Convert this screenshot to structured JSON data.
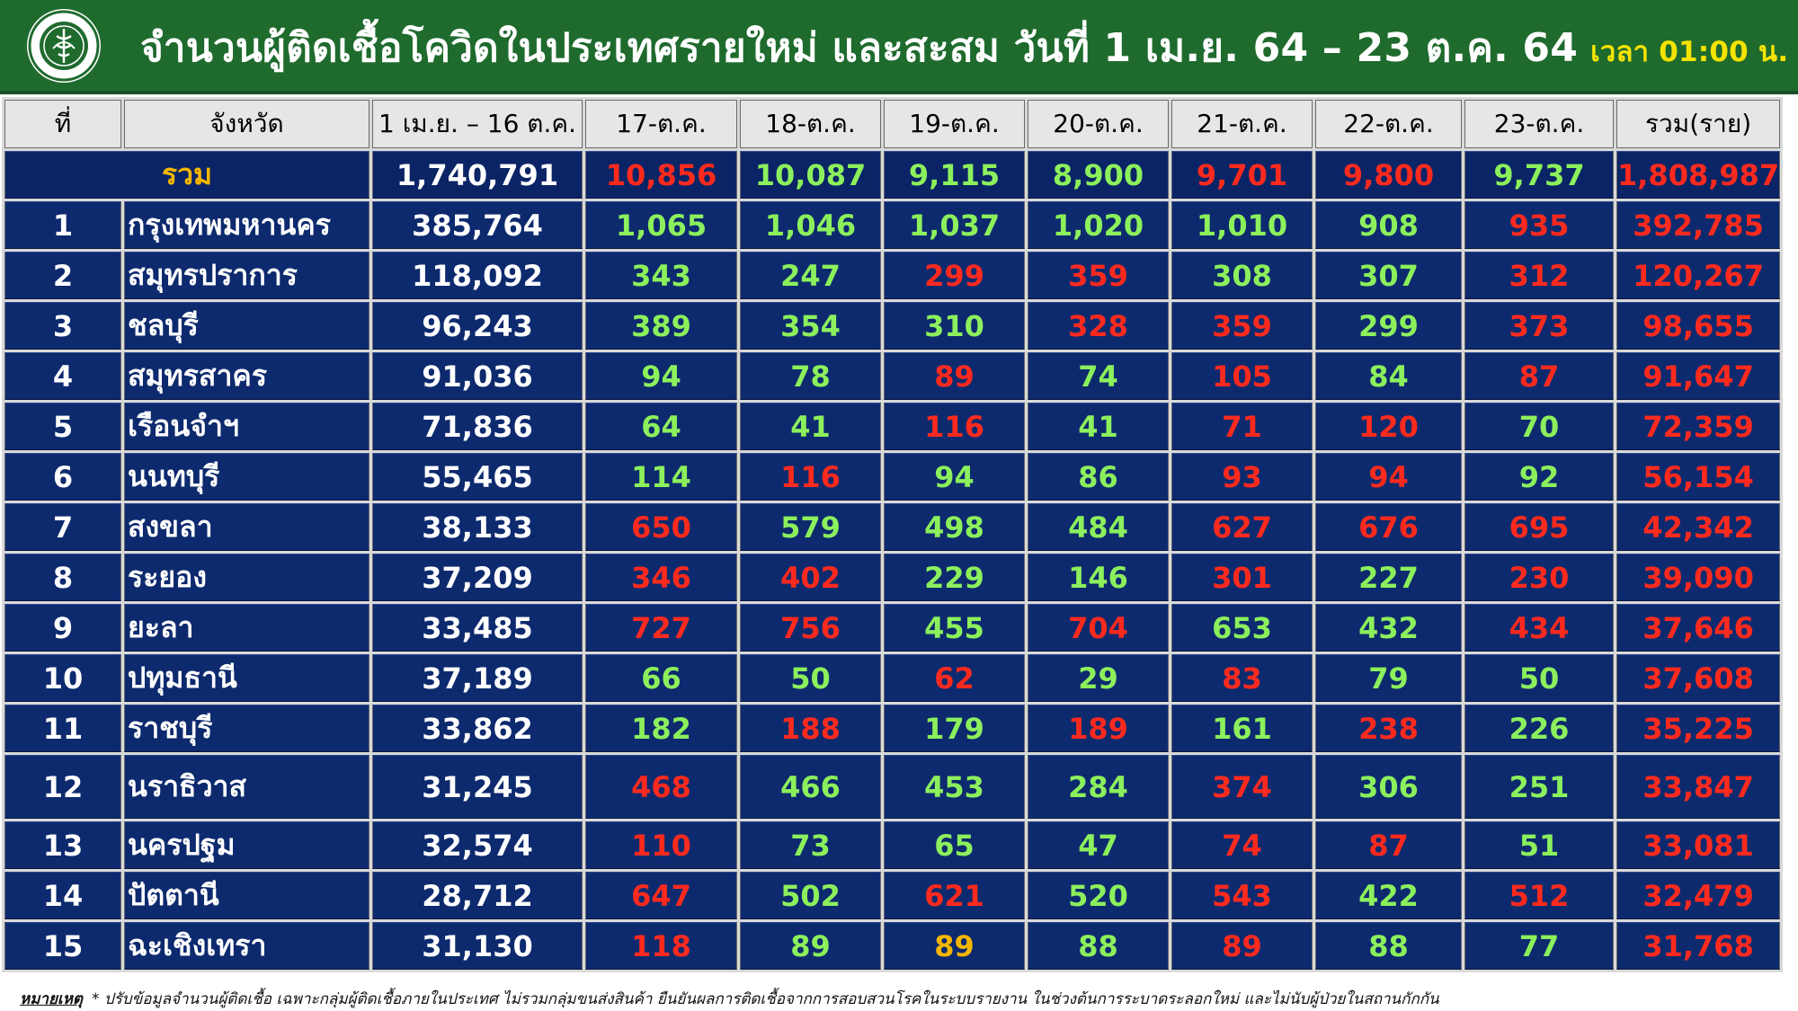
{
  "header": {
    "title": "จำนวนผู้ติดเชื้อโควิดในประเทศรายใหม่ และสะสม วันที่ 1 เม.ย. 64 – 23 ต.ค. 64",
    "time": "เวลา 01:00 น.",
    "logo_icon": "moph-emblem-icon",
    "bg_color": "#1f6b2e"
  },
  "table": {
    "headers": [
      "ที่",
      "จังหวัด",
      "1 เม.ย. – 16 ต.ค.",
      "17-ต.ค.",
      "18-ต.ค.",
      "19-ต.ค.",
      "20-ต.ค.",
      "21-ต.ค.",
      "22-ต.ค.",
      "23-ต.ค.",
      "รวม(ราย)"
    ],
    "total": {
      "label": "รวม",
      "cumulative": "1,740,791",
      "days": [
        "10,856",
        "10,087",
        "9,115",
        "8,900",
        "9,701",
        "9,800",
        "9,737"
      ],
      "day_colors": [
        "red",
        "green",
        "green",
        "green",
        "red",
        "red",
        "green"
      ],
      "sum": "1,808,987",
      "sum_color": "red"
    },
    "rows": [
      {
        "no": "1",
        "province": "กรุงเทพมหานคร",
        "cumulative": "385,764",
        "days": [
          "1,065",
          "1,046",
          "1,037",
          "1,020",
          "1,010",
          "908",
          "935"
        ],
        "day_colors": [
          "green",
          "green",
          "green",
          "green",
          "green",
          "green",
          "red"
        ],
        "sum": "392,785"
      },
      {
        "no": "2",
        "province": "สมุทรปราการ",
        "cumulative": "118,092",
        "days": [
          "343",
          "247",
          "299",
          "359",
          "308",
          "307",
          "312"
        ],
        "day_colors": [
          "green",
          "green",
          "red",
          "red",
          "green",
          "green",
          "red"
        ],
        "sum": "120,267"
      },
      {
        "no": "3",
        "province": "ชลบุรี",
        "cumulative": "96,243",
        "days": [
          "389",
          "354",
          "310",
          "328",
          "359",
          "299",
          "373"
        ],
        "day_colors": [
          "green",
          "green",
          "green",
          "red",
          "red",
          "green",
          "red"
        ],
        "sum": "98,655"
      },
      {
        "no": "4",
        "province": "สมุทรสาคร",
        "cumulative": "91,036",
        "days": [
          "94",
          "78",
          "89",
          "74",
          "105",
          "84",
          "87"
        ],
        "day_colors": [
          "green",
          "green",
          "red",
          "green",
          "red",
          "green",
          "red"
        ],
        "sum": "91,647"
      },
      {
        "no": "5",
        "province": "เรือนจำฯ",
        "cumulative": "71,836",
        "days": [
          "64",
          "41",
          "116",
          "41",
          "71",
          "120",
          "70"
        ],
        "day_colors": [
          "green",
          "green",
          "red",
          "green",
          "red",
          "red",
          "green"
        ],
        "sum": "72,359"
      },
      {
        "no": "6",
        "province": "นนทบุรี",
        "cumulative": "55,465",
        "days": [
          "114",
          "116",
          "94",
          "86",
          "93",
          "94",
          "92"
        ],
        "day_colors": [
          "green",
          "red",
          "green",
          "green",
          "red",
          "red",
          "green"
        ],
        "sum": "56,154"
      },
      {
        "no": "7",
        "province": "สงขลา",
        "cumulative": "38,133",
        "days": [
          "650",
          "579",
          "498",
          "484",
          "627",
          "676",
          "695"
        ],
        "day_colors": [
          "red",
          "green",
          "green",
          "green",
          "red",
          "red",
          "red"
        ],
        "sum": "42,342"
      },
      {
        "no": "8",
        "province": "ระยอง",
        "cumulative": "37,209",
        "days": [
          "346",
          "402",
          "229",
          "146",
          "301",
          "227",
          "230"
        ],
        "day_colors": [
          "red",
          "red",
          "green",
          "green",
          "red",
          "green",
          "red"
        ],
        "sum": "39,090"
      },
      {
        "no": "9",
        "province": "ยะลา",
        "cumulative": "33,485",
        "days": [
          "727",
          "756",
          "455",
          "704",
          "653",
          "432",
          "434"
        ],
        "day_colors": [
          "red",
          "red",
          "green",
          "red",
          "green",
          "green",
          "red"
        ],
        "sum": "37,646"
      },
      {
        "no": "10",
        "province": "ปทุมธานี",
        "cumulative": "37,189",
        "days": [
          "66",
          "50",
          "62",
          "29",
          "83",
          "79",
          "50"
        ],
        "day_colors": [
          "green",
          "green",
          "red",
          "green",
          "red",
          "green",
          "green"
        ],
        "sum": "37,608"
      },
      {
        "no": "11",
        "province": "ราชบุรี",
        "cumulative": "33,862",
        "days": [
          "182",
          "188",
          "179",
          "189",
          "161",
          "238",
          "226"
        ],
        "day_colors": [
          "green",
          "red",
          "green",
          "red",
          "green",
          "red",
          "green"
        ],
        "sum": "35,225"
      },
      {
        "no": "12",
        "province": "นราธิวาส",
        "cumulative": "31,245",
        "days": [
          "468",
          "466",
          "453",
          "284",
          "374",
          "306",
          "251"
        ],
        "day_colors": [
          "red",
          "green",
          "green",
          "green",
          "red",
          "green",
          "green"
        ],
        "sum": "33,847"
      },
      {
        "no": "13",
        "province": "นครปฐม",
        "cumulative": "32,574",
        "days": [
          "110",
          "73",
          "65",
          "47",
          "74",
          "87",
          "51"
        ],
        "day_colors": [
          "red",
          "green",
          "green",
          "green",
          "red",
          "red",
          "green"
        ],
        "sum": "33,081"
      },
      {
        "no": "14",
        "province": "ปัตตานี",
        "cumulative": "28,712",
        "days": [
          "647",
          "502",
          "621",
          "520",
          "543",
          "422",
          "512"
        ],
        "day_colors": [
          "red",
          "green",
          "red",
          "green",
          "red",
          "green",
          "red"
        ],
        "sum": "32,479"
      },
      {
        "no": "15",
        "province": "ฉะเชิงเทรา",
        "cumulative": "31,130",
        "days": [
          "118",
          "89",
          "89",
          "88",
          "89",
          "88",
          "77"
        ],
        "day_colors": [
          "red",
          "green",
          "yellow",
          "green",
          "red",
          "green",
          "green"
        ],
        "sum": "31,768"
      }
    ],
    "sum_color": "red"
  },
  "note": {
    "label": "หมายเหตุ",
    "text": "* ปรับข้อมูลจำนวนผู้ติดเชื้อ เฉพาะกลุ่มผู้ติดเชื้อภายในประเทศ ไม่รวมกลุ่มขนส่งสินค้า ยืนยันผลการติดเชื้อจากการสอบสวนโรคในระบบรายงาน ในช่วงต้นการระบาดระลอกใหม่ และไม่นับผู้ป่วยในสถานกักกัน"
  },
  "colors": {
    "header_green": "#1f6b2e",
    "cell_navy": "#0d2a6e",
    "increase_red": "#ff2a1e",
    "decrease_green": "#8cf05c",
    "equal_yellow": "#f5b600"
  }
}
